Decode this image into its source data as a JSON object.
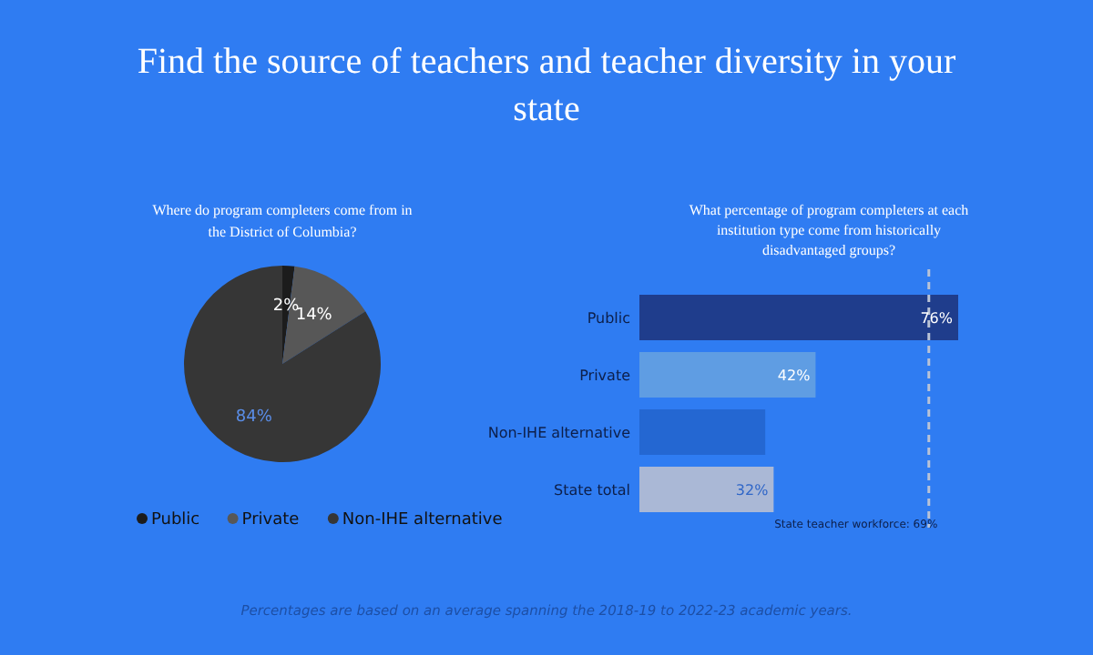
{
  "chart_data": [
    {
      "type": "pie",
      "title": "Find the source of teachers and teacher diversity in your state",
      "subtitle": "Where do program completers come from in the District of Columbia?",
      "categories": [
        "Public",
        "Private",
        "Non-IHE alternative"
      ],
      "values": [
        2,
        14,
        84
      ],
      "colors": [
        "#1c1c1c",
        "#575757",
        "#363636"
      ],
      "value_labels": [
        "2%",
        "14%",
        "84%"
      ],
      "legend": "bottom"
    },
    {
      "type": "bar",
      "orientation": "horizontal",
      "title": "What percentage of program completers at each institution type come from historically disadvantaged groups?",
      "categories": [
        "Public",
        "Private",
        "Non-IHE alternative",
        "State total"
      ],
      "values": [
        76,
        42,
        30,
        32
      ],
      "colors": [
        "#1f3d8c",
        "#5f9de3",
        "#2467d2",
        "#aab8d6"
      ],
      "value_labels": [
        "76%",
        "42%",
        null,
        "32%"
      ],
      "ref_lines": [
        {
          "axis": "x",
          "value": 69,
          "label": "State teacher workforce: 69%",
          "color": "#b9c3d6",
          "line_style": "dashed"
        }
      ],
      "annotations": [
        "Percentages are based on an average spanning the 2018-19 to 2022-23 academic years."
      ]
    }
  ]
}
